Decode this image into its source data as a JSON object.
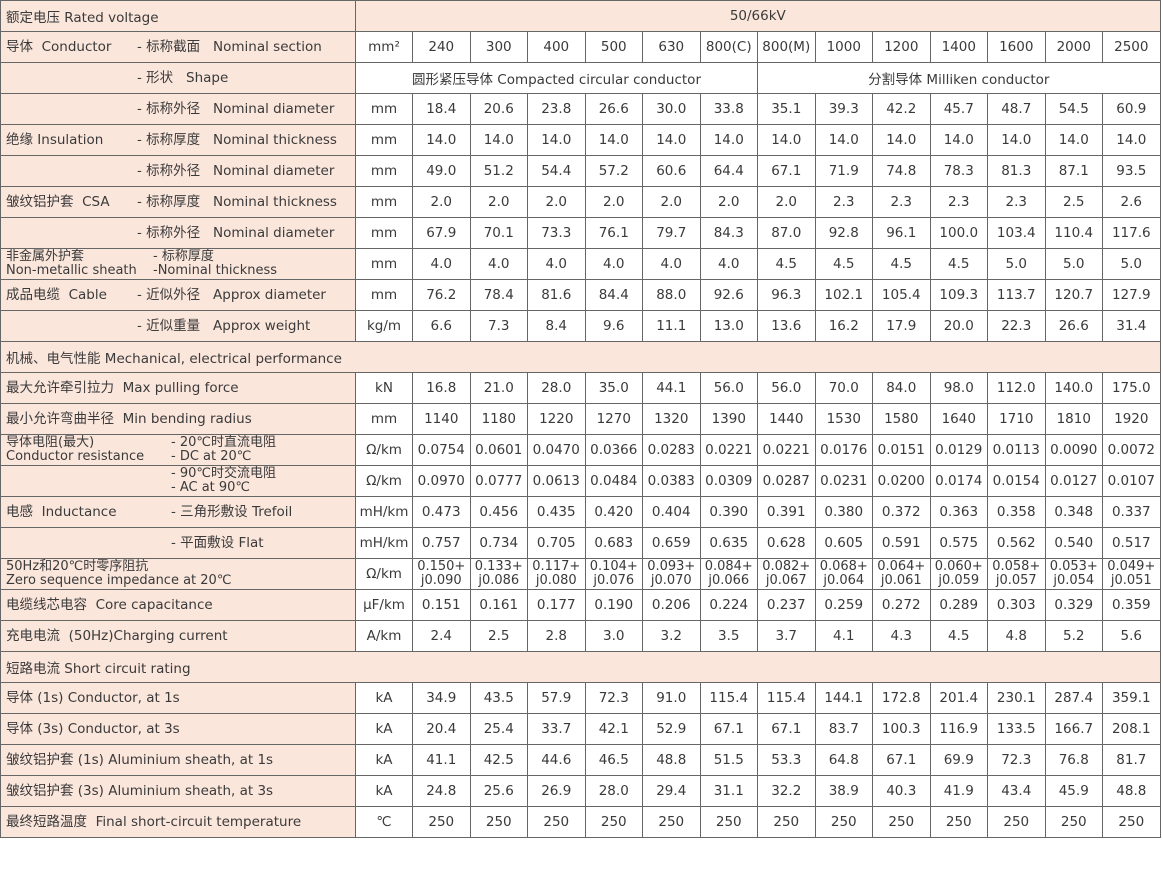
{
  "colors": {
    "label_bg": "#fbe6dc",
    "cell_bg": "#ffffff",
    "border": "#666666"
  },
  "rated_voltage": {
    "label": "额定电压  Rated voltage",
    "value": "50/66kV"
  },
  "rows": [
    {
      "g": "导体  Conductor",
      "s": "- 标称截面   Nominal section",
      "u": "mm²",
      "v": [
        "240",
        "300",
        "400",
        "500",
        "630",
        "800(C)",
        "800(M)",
        "1000",
        "1200",
        "1400",
        "1600",
        "2000",
        "2500"
      ]
    },
    {
      "g": "",
      "s": "- 形状   Shape",
      "shape": [
        "圆形紧压导体 Compacted circular conductor",
        "分割导体  Milliken conductor"
      ]
    },
    {
      "g": "",
      "s": "- 标称外径   Nominal diameter",
      "u": "mm",
      "v": [
        "18.4",
        "20.6",
        "23.8",
        "26.6",
        "30.0",
        "33.8",
        "35.1",
        "39.3",
        "42.2",
        "45.7",
        "48.7",
        "54.5",
        "60.9"
      ]
    },
    {
      "g": "绝缘 Insulation",
      "s": "- 标称厚度   Nominal thickness",
      "u": "mm",
      "v": [
        "14.0",
        "14.0",
        "14.0",
        "14.0",
        "14.0",
        "14.0",
        "14.0",
        "14.0",
        "14.0",
        "14.0",
        "14.0",
        "14.0",
        "14.0"
      ]
    },
    {
      "g": "",
      "s": "- 标称外径   Nominal diameter",
      "u": "mm",
      "v": [
        "49.0",
        "51.2",
        "54.4",
        "57.2",
        "60.6",
        "64.4",
        "67.1",
        "71.9",
        "74.8",
        "78.3",
        "81.3",
        "87.1",
        "93.5"
      ]
    },
    {
      "g": "皱纹铝护套  CSA",
      "s": "- 标称厚度   Nominal thickness",
      "u": "mm",
      "v": [
        "2.0",
        "2.0",
        "2.0",
        "2.0",
        "2.0",
        "2.0",
        "2.0",
        "2.3",
        "2.3",
        "2.3",
        "2.3",
        "2.5",
        "2.6"
      ]
    },
    {
      "g": "",
      "s": "- 标称外径   Nominal diameter",
      "u": "mm",
      "v": [
        "67.9",
        "70.1",
        "73.3",
        "76.1",
        "79.7",
        "84.3",
        "87.0",
        "92.8",
        "96.1",
        "100.0",
        "103.4",
        "110.4",
        "117.6"
      ]
    },
    {
      "g": "非金属外护套\nNon-metallic sheath",
      "s": "- 标称厚度\n-Nominal thickness",
      "u": "mm",
      "v": [
        "4.0",
        "4.0",
        "4.0",
        "4.0",
        "4.0",
        "4.0",
        "4.5",
        "4.5",
        "4.5",
        "4.5",
        "5.0",
        "5.0",
        "5.0"
      ]
    },
    {
      "g": "成品电缆  Cable",
      "s": "- 近似外径   Approx diameter",
      "u": "mm",
      "v": [
        "76.2",
        "78.4",
        "81.6",
        "84.4",
        "88.0",
        "92.6",
        "96.3",
        "102.1",
        "105.4",
        "109.3",
        "113.7",
        "120.7",
        "127.9"
      ]
    },
    {
      "g": "",
      "s": "- 近似重量   Approx weight",
      "u": "kg/m",
      "v": [
        "6.6",
        "7.3",
        "8.4",
        "9.6",
        "11.1",
        "13.0",
        "13.6",
        "16.2",
        "17.9",
        "20.0",
        "22.3",
        "26.6",
        "31.4"
      ]
    },
    {
      "section": "机械、电气性能  Mechanical, electrical performance"
    },
    {
      "g": "最大允许牵引拉力  Max pulling force",
      "s": "",
      "u": "kN",
      "v": [
        "16.8",
        "21.0",
        "28.0",
        "35.0",
        "44.1",
        "56.0",
        "56.0",
        "70.0",
        "84.0",
        "98.0",
        "112.0",
        "140.0",
        "175.0"
      ]
    },
    {
      "g": "最小允许弯曲半径  Min bending radius",
      "s": "",
      "u": "mm",
      "v": [
        "1140",
        "1180",
        "1220",
        "1270",
        "1320",
        "1390",
        "1440",
        "1530",
        "1580",
        "1640",
        "1710",
        "1810",
        "1920"
      ]
    },
    {
      "g": "导体电阻(最大)\nConductor resistance",
      "s": "- 20℃时直流电阻\n- DC at 20℃",
      "u": "Ω/km",
      "v": [
        "0.0754",
        "0.0601",
        "0.0470",
        "0.0366",
        "0.0283",
        "0.0221",
        "0.0221",
        "0.0176",
        "0.0151",
        "0.0129",
        "0.0113",
        "0.0090",
        "0.0072"
      ]
    },
    {
      "g": "",
      "s": "- 90℃时交流电阻\n- AC at 90℃",
      "u": "Ω/km",
      "v": [
        "0.0970",
        "0.0777",
        "0.0613",
        "0.0484",
        "0.0383",
        "0.0309",
        "0.0287",
        "0.0231",
        "0.0200",
        "0.0174",
        "0.0154",
        "0.0127",
        "0.0107"
      ]
    },
    {
      "g": "电感  Inductance",
      "s": "- 三角形敷设 Trefoil",
      "u": "mH/km",
      "v": [
        "0.473",
        "0.456",
        "0.435",
        "0.420",
        "0.404",
        "0.390",
        "0.391",
        "0.380",
        "0.372",
        "0.363",
        "0.358",
        "0.348",
        "0.337"
      ]
    },
    {
      "g": "",
      "s": "- 平面敷设 Flat",
      "u": "mH/km",
      "v": [
        "0.757",
        "0.734",
        "0.705",
        "0.683",
        "0.659",
        "0.635",
        "0.628",
        "0.605",
        "0.591",
        "0.575",
        "0.562",
        "0.540",
        "0.517"
      ]
    },
    {
      "g": "50Hz和20℃时零序阻抗\nZero sequence impedance at 20℃",
      "s": "",
      "u": "Ω/km",
      "v": [
        "0.150+\nj0.090",
        "0.133+\nj0.086",
        "0.117+\nj0.080",
        "0.104+\nj0.076",
        "0.093+\nj0.070",
        "0.084+\nj0.066",
        "0.082+\nj0.067",
        "0.068+\nj0.064",
        "0.064+\nj0.061",
        "0.060+\nj0.059",
        "0.058+\nj0.057",
        "0.053+\nj0.054",
        "0.049+\nj0.051"
      ]
    },
    {
      "g": "电缆线芯电容  Core capacitance",
      "s": "",
      "u": "μF/km",
      "v": [
        "0.151",
        "0.161",
        "0.177",
        "0.190",
        "0.206",
        "0.224",
        "0.237",
        "0.259",
        "0.272",
        "0.289",
        "0.303",
        "0.329",
        "0.359"
      ]
    },
    {
      "g": "充电电流  (50Hz)Charging current",
      "s": "",
      "u": "A/km",
      "v": [
        "2.4",
        "2.5",
        "2.8",
        "3.0",
        "3.2",
        "3.5",
        "3.7",
        "4.1",
        "4.3",
        "4.5",
        "4.8",
        "5.2",
        "5.6"
      ]
    },
    {
      "section": "短路电流  Short circuit  rating"
    },
    {
      "g": "导体 (1s) Conductor, at 1s",
      "s": "",
      "u": "kA",
      "v": [
        "34.9",
        "43.5",
        "57.9",
        "72.3",
        "91.0",
        "115.4",
        "115.4",
        "144.1",
        "172.8",
        "201.4",
        "230.1",
        "287.4",
        "359.1"
      ]
    },
    {
      "g": "导体 (3s) Conductor, at 3s",
      "s": "",
      "u": "kA",
      "v": [
        "20.4",
        "25.4",
        "33.7",
        "42.1",
        "52.9",
        "67.1",
        "67.1",
        "83.7",
        "100.3",
        "116.9",
        "133.5",
        "166.7",
        "208.1"
      ]
    },
    {
      "g": "皱纹铝护套 (1s) Aluminium sheath, at 1s",
      "s": "",
      "u": "kA",
      "v": [
        "41.1",
        "42.5",
        "44.6",
        "46.5",
        "48.8",
        "51.5",
        "53.3",
        "64.8",
        "67.1",
        "69.9",
        "72.3",
        "76.8",
        "81.7"
      ]
    },
    {
      "g": "皱纹铝护套 (3s) Aluminium sheath, at 3s",
      "s": "",
      "u": "kA",
      "v": [
        "24.8",
        "25.6",
        "26.9",
        "28.0",
        "29.4",
        "31.1",
        "32.2",
        "38.9",
        "40.3",
        "41.9",
        "43.4",
        "45.9",
        "48.8"
      ]
    },
    {
      "g": "最终短路温度  Final short-circuit temperature",
      "s": "",
      "u": "℃",
      "v": [
        "250",
        "250",
        "250",
        "250",
        "250",
        "250",
        "250",
        "250",
        "250",
        "250",
        "250",
        "250",
        "250"
      ]
    }
  ]
}
